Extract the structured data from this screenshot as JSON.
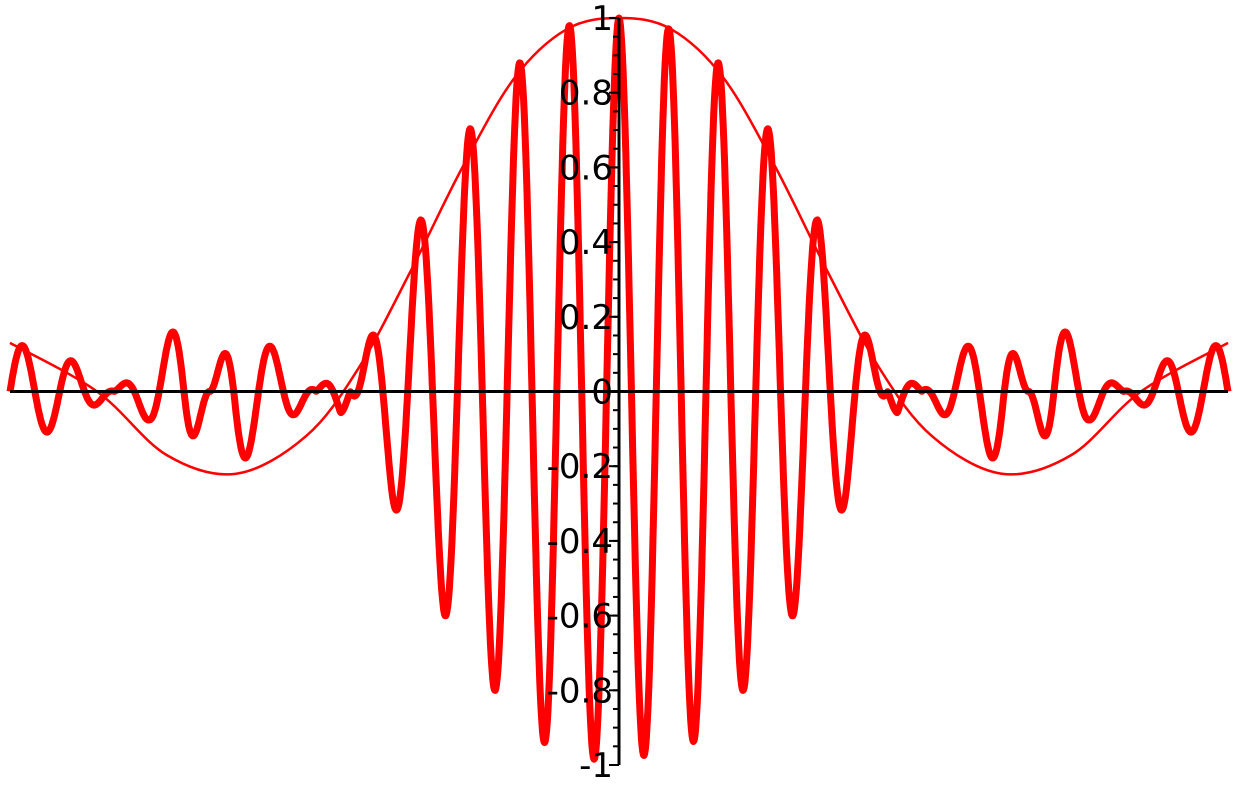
{
  "chart_data": {
    "type": "line",
    "title": "",
    "xlabel": "",
    "ylabel": "",
    "xlim": [
      -3.5,
      3.5
    ],
    "ylim": [
      -1,
      1
    ],
    "grid": false,
    "legend": "none",
    "y_ticks": [
      {
        "value": 1,
        "label": "1"
      },
      {
        "value": 0.8,
        "label": "0.8"
      },
      {
        "value": 0.6,
        "label": "0.6"
      },
      {
        "value": 0.4,
        "label": "0.4"
      },
      {
        "value": 0.2,
        "label": "0.2"
      },
      {
        "value": 0,
        "label": "0"
      },
      {
        "value": -0.2,
        "label": "-0.2"
      },
      {
        "value": -0.4,
        "label": "-0.4"
      },
      {
        "value": -0.6,
        "label": "-0.6"
      },
      {
        "value": -0.8,
        "label": "-0.8"
      },
      {
        "value": -1,
        "label": "-1"
      }
    ],
    "series": [
      {
        "role": "carrier",
        "color": "#ff0000",
        "x": [
          -3.5,
          -3.2,
          -2.9,
          -2.7,
          -2.5,
          -2.2,
          -1.9,
          -1.6,
          -1.3,
          -1.0,
          -0.75,
          -0.5,
          -0.25,
          -0.05,
          0,
          0.05,
          0.25,
          0.5,
          0.75,
          1.0,
          1.3,
          1.6,
          1.9,
          2.2,
          2.5,
          2.7,
          2.9,
          3.2,
          3.5
        ],
        "y": [
          0.13,
          0.1,
          0.0,
          -0.08,
          -0.2,
          0.2,
          0.08,
          -0.07,
          0.3,
          0.6,
          0.78,
          0.92,
          0.99,
          0.98,
          1.0,
          0.97,
          0.98,
          0.92,
          0.78,
          0.6,
          0.3,
          -0.07,
          0.08,
          0.2,
          -0.2,
          -0.08,
          0.0,
          0.1,
          0.13
        ]
      },
      {
        "role": "envelope",
        "color": "#ff0000",
        "x": [
          -3.5,
          -3.0,
          -2.6,
          -2.2,
          -1.8,
          -1.5,
          -1.2,
          -0.9,
          -0.6,
          -0.3,
          0,
          0.3,
          0.6,
          0.9,
          1.2,
          1.5,
          1.8,
          2.2,
          2.6,
          3.0,
          3.5
        ],
        "y": [
          0.13,
          0.0,
          -0.17,
          -0.22,
          -0.12,
          0.06,
          0.32,
          0.6,
          0.84,
          0.97,
          1.0,
          0.97,
          0.84,
          0.6,
          0.32,
          0.06,
          -0.12,
          -0.22,
          -0.17,
          0.0,
          0.13
        ]
      }
    ]
  }
}
